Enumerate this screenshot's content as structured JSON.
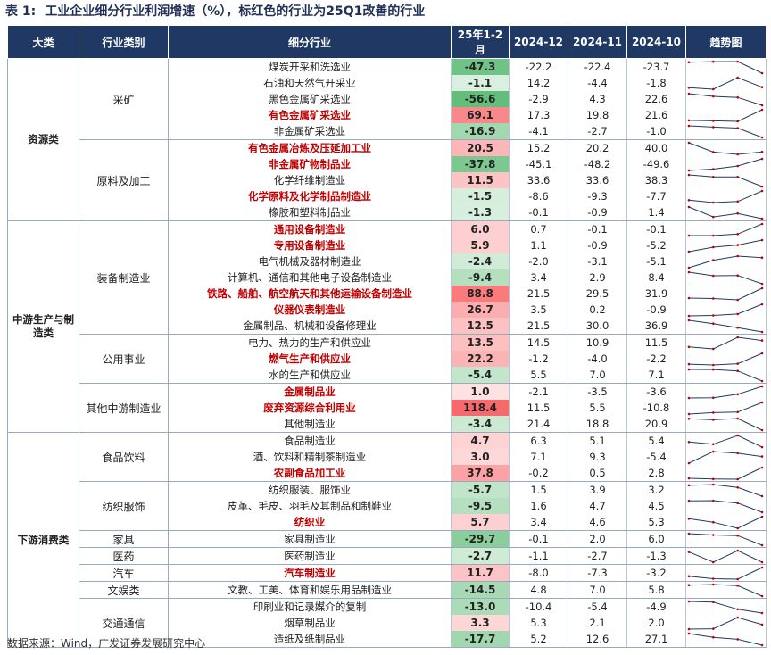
{
  "title": {
    "label": "表 1:",
    "text": "工业企业细分行业利润增速（%），标红色的行业为25Q1改善的行业"
  },
  "headers": [
    "大类",
    "行业类别",
    "细分行业",
    "25年1-2月",
    "2024-12",
    "2024-11",
    "2024-10",
    "趋势图"
  ],
  "colors": {
    "header_bg": "#1f3864",
    "highlight_text": "#c00000",
    "positive_scale": "#f8696b",
    "negative_scale": "#63be7b",
    "sparkline": "#1f3864",
    "sparkline_marker": "#c00000"
  },
  "groups": [
    {
      "category": "资源类",
      "subgroups": [
        {
          "name": "采矿",
          "rows": [
            {
              "ind": "煤炭开采和洗选业",
              "red": false,
              "v": [
                "-47.3",
                "-22.2",
                "-22.4",
                "-23.7"
              ]
            },
            {
              "ind": "石油和天然气开采业",
              "red": false,
              "v": [
                "-1.1",
                "14.2",
                "-4.4",
                "-1.8"
              ]
            },
            {
              "ind": "黑色金属矿采选业",
              "red": false,
              "v": [
                "-56.6",
                "-2.9",
                "4.3",
                "22.6"
              ]
            },
            {
              "ind": "有色金属矿采选业",
              "red": true,
              "v": [
                "69.1",
                "17.3",
                "19.8",
                "21.6"
              ]
            },
            {
              "ind": "非金属矿采选业",
              "red": false,
              "v": [
                "-16.9",
                "-4.1",
                "-2.7",
                "-1.0"
              ]
            }
          ]
        },
        {
          "name": "原料及加工",
          "rows": [
            {
              "ind": "有色金属冶炼及压延加工业",
              "red": true,
              "v": [
                "20.5",
                "15.2",
                "20.2",
                "40.0"
              ]
            },
            {
              "ind": "非金属矿物制品业",
              "red": true,
              "v": [
                "-37.8",
                "-45.1",
                "-48.2",
                "-49.6"
              ]
            },
            {
              "ind": "化学纤维制造业",
              "red": false,
              "v": [
                "11.5",
                "33.6",
                "33.6",
                "38.3"
              ]
            },
            {
              "ind": "化学原料及化学制品制造业",
              "red": true,
              "v": [
                "-1.5",
                "-8.6",
                "-9.3",
                "-7.7"
              ]
            },
            {
              "ind": "橡胶和塑料制品业",
              "red": false,
              "v": [
                "-1.3",
                "-0.1",
                "-0.9",
                "1.4"
              ]
            }
          ]
        }
      ]
    },
    {
      "category": "中游生产与制造类",
      "subgroups": [
        {
          "name": "装备制造业",
          "rows": [
            {
              "ind": "通用设备制造业",
              "red": true,
              "v": [
                "6.0",
                "0.7",
                "-0.1",
                "-0.1"
              ]
            },
            {
              "ind": "专用设备制造业",
              "red": true,
              "v": [
                "5.9",
                "1.1",
                "-0.9",
                "-5.2"
              ]
            },
            {
              "ind": "电气机械及器材制造业",
              "red": false,
              "v": [
                "-2.4",
                "-2.0",
                "-3.1",
                "-5.1"
              ]
            },
            {
              "ind": "计算机、通信和其他电子设备制造业",
              "red": false,
              "v": [
                "-9.4",
                "3.4",
                "2.9",
                "8.4"
              ]
            },
            {
              "ind": "铁路、船舶、航空航天和其他运输设备制造业",
              "red": true,
              "v": [
                "88.8",
                "21.5",
                "29.5",
                "31.9"
              ]
            },
            {
              "ind": "仪器仪表制造业",
              "red": true,
              "v": [
                "26.7",
                "3.5",
                "0.2",
                "-0.9"
              ]
            },
            {
              "ind": "金属制品、机械和设备修理业",
              "red": false,
              "v": [
                "12.5",
                "21.5",
                "30.0",
                "36.9"
              ]
            }
          ]
        },
        {
          "name": "公用事业",
          "rows": [
            {
              "ind": "电力、热力的生产和供应业",
              "red": false,
              "v": [
                "13.5",
                "14.5",
                "10.9",
                "11.5"
              ]
            },
            {
              "ind": "燃气生产和供应业",
              "red": true,
              "v": [
                "22.2",
                "-1.2",
                "-4.0",
                "-2.2"
              ]
            },
            {
              "ind": "水的生产和供应业",
              "red": false,
              "v": [
                "-5.4",
                "5.5",
                "7.0",
                "7.1"
              ]
            }
          ]
        },
        {
          "name": "其他中游制造业",
          "rows": [
            {
              "ind": "金属制品业",
              "red": true,
              "v": [
                "1.0",
                "-2.1",
                "-3.5",
                "-3.6"
              ]
            },
            {
              "ind": "废弃资源综合利用业",
              "red": true,
              "v": [
                "118.4",
                "11.5",
                "5.5",
                "-10.8"
              ]
            },
            {
              "ind": "其他制造业",
              "red": false,
              "v": [
                "-3.4",
                "21.4",
                "18.8",
                "20.9"
              ]
            }
          ]
        }
      ]
    },
    {
      "category": "下游消费类",
      "subgroups": [
        {
          "name": "食品饮料",
          "rows": [
            {
              "ind": "食品制造业",
              "red": false,
              "v": [
                "4.7",
                "6.3",
                "5.1",
                "5.4"
              ]
            },
            {
              "ind": "酒、饮料和精制茶制造业",
              "red": false,
              "v": [
                "3.0",
                "7.1",
                "9.3",
                "-5.4"
              ]
            },
            {
              "ind": "农副食品加工业",
              "red": true,
              "v": [
                "37.8",
                "-0.2",
                "0.5",
                "2.8"
              ]
            }
          ]
        },
        {
          "name": "纺织服饰",
          "rows": [
            {
              "ind": "纺织服装、服饰业",
              "red": false,
              "v": [
                "-5.7",
                "1.5",
                "3.9",
                "3.2"
              ]
            },
            {
              "ind": "皮革、毛皮、羽毛及其制品和制鞋业",
              "red": false,
              "v": [
                "-9.5",
                "1.6",
                "4.7",
                "4.5"
              ]
            },
            {
              "ind": "纺织业",
              "red": true,
              "v": [
                "5.7",
                "3.4",
                "4.6",
                "5.3"
              ]
            }
          ]
        },
        {
          "name": "家具",
          "rows": [
            {
              "ind": "家具制造业",
              "red": false,
              "v": [
                "-29.7",
                "-0.1",
                "2.0",
                "6.0"
              ]
            }
          ]
        },
        {
          "name": "医药",
          "rows": [
            {
              "ind": "医药制造业",
              "red": false,
              "v": [
                "-2.7",
                "-1.1",
                "-2.7",
                "-1.3"
              ]
            }
          ]
        },
        {
          "name": "汽车",
          "rows": [
            {
              "ind": "汽车制造业",
              "red": true,
              "v": [
                "11.7",
                "-8.0",
                "-7.3",
                "-3.2"
              ]
            }
          ]
        },
        {
          "name": "文娱类",
          "rows": [
            {
              "ind": "文教、工美、体育和娱乐用品制造业",
              "red": false,
              "v": [
                "-14.5",
                "4.8",
                "7.0",
                "5.8"
              ]
            }
          ]
        },
        {
          "name": "交通通信",
          "rows": [
            {
              "ind": "印刷业和记录媒介的复制",
              "red": false,
              "v": [
                "-13.0",
                "-10.4",
                "-5.4",
                "-4.9"
              ]
            },
            {
              "ind": "烟草制品业",
              "red": false,
              "v": [
                "3.3",
                "5.3",
                "2.1",
                "2.0"
              ]
            },
            {
              "ind": "造纸及纸制品业",
              "red": false,
              "v": [
                "-17.7",
                "5.2",
                "12.6",
                "27.1"
              ]
            }
          ]
        }
      ]
    }
  ],
  "footer": "数据来源：Wind，广发证券发展研究中心"
}
